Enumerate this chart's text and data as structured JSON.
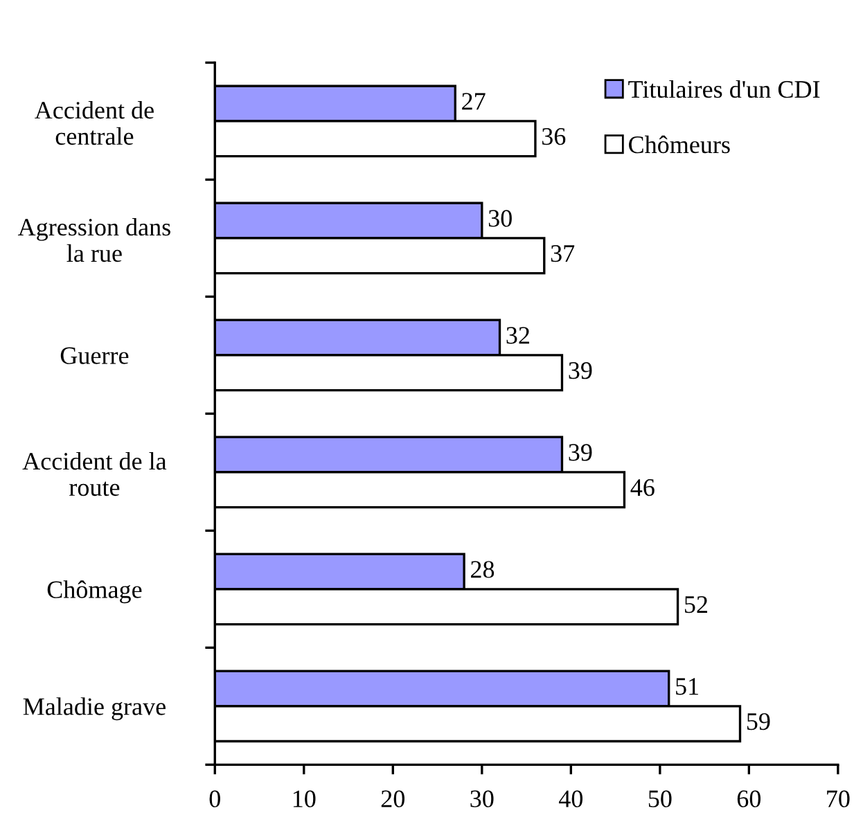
{
  "chart_data": {
    "type": "bar",
    "orientation": "horizontal",
    "categories": [
      "Accident de\ncentrale",
      "Agression dans\nla rue",
      "Guerre",
      "Accident de la\nroute",
      "Chômage",
      "Maladie grave"
    ],
    "series": [
      {
        "name": "Titulaires d'un CDI",
        "color": "#9999ff",
        "values": [
          27,
          30,
          32,
          39,
          28,
          51
        ]
      },
      {
        "name": "Chômeurs",
        "color": "#ffffff",
        "values": [
          36,
          37,
          39,
          46,
          52,
          59
        ]
      }
    ],
    "xlim": [
      0,
      70
    ],
    "xticks": [
      0,
      10,
      20,
      30,
      40,
      50,
      60,
      70
    ],
    "data_labels": true,
    "legend": "top right",
    "grid": false
  }
}
